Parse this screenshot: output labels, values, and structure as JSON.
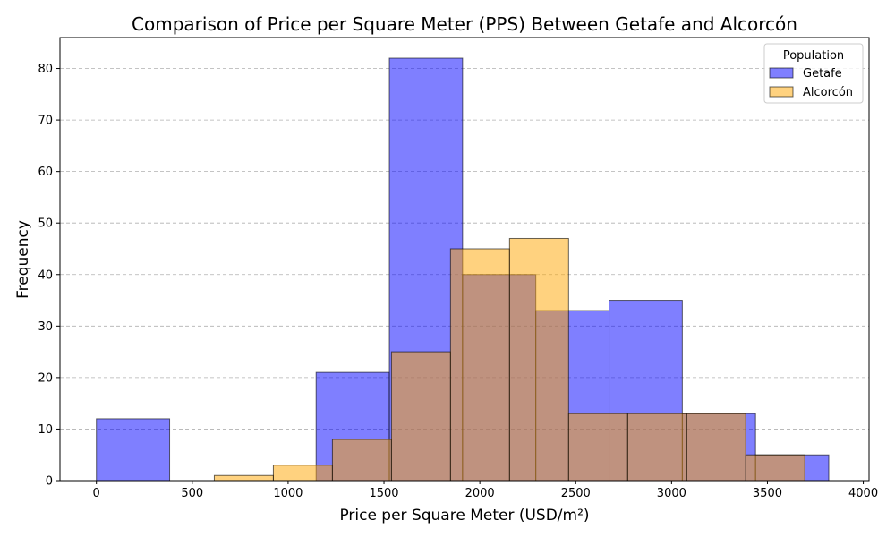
{
  "chart_data": {
    "type": "histogram",
    "title": "Comparison of Price per Square Meter (PPS) Between Getafe and Alcorcón",
    "xlabel": "Price per Square Meter (USD/m²)",
    "ylabel": "Frequency",
    "xlim": [
      -190,
      4030
    ],
    "ylim": [
      0,
      86
    ],
    "xticks": [
      0,
      500,
      1000,
      1500,
      2000,
      2500,
      3000,
      3500,
      4000
    ],
    "yticks": [
      0,
      10,
      20,
      30,
      40,
      50,
      60,
      70,
      80
    ],
    "grid": "y-dashed",
    "legend": {
      "title": "Population",
      "position": "top-right"
    },
    "series": [
      {
        "name": "Getafe",
        "color": "#0000ff",
        "alpha": 0.5,
        "bin_edges": [
          0,
          382,
          764,
          1146,
          1528,
          1910,
          2292,
          2674,
          3056,
          3438,
          3820
        ],
        "counts": [
          12,
          0,
          0,
          21,
          82,
          40,
          33,
          35,
          13,
          5
        ]
      },
      {
        "name": "Alcorcón",
        "color": "#ffa500",
        "alpha": 0.5,
        "bin_edges": [
          615,
          923,
          1231,
          1539,
          1847,
          2155,
          2463,
          2771,
          3079,
          3387,
          3695
        ],
        "counts": [
          1,
          3,
          8,
          25,
          45,
          47,
          13,
          13,
          13,
          5
        ]
      }
    ]
  }
}
